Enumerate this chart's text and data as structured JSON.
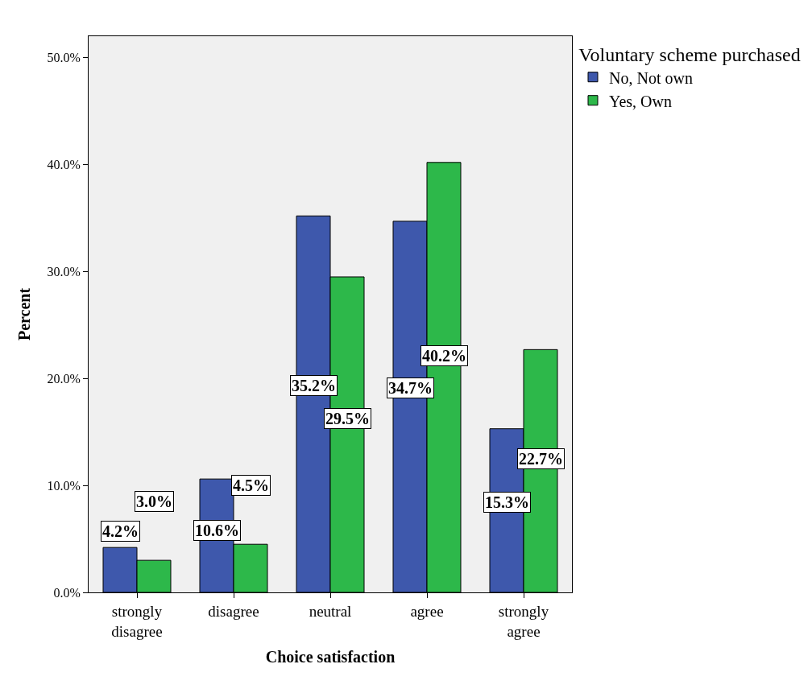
{
  "chart_data": {
    "type": "bar",
    "xlabel": "Choice satisfaction",
    "ylabel": "Percent",
    "legend_title": "Voluntary scheme purchased",
    "categories": [
      "strongly disagree",
      "disagree",
      "neutral",
      "agree",
      "strongly agree"
    ],
    "series": [
      {
        "name": "No, Not own",
        "color": "#3e58ac",
        "values": [
          4.2,
          10.6,
          35.2,
          34.7,
          15.3
        ],
        "value_labels": [
          "4.2%",
          "10.6%",
          "35.2%",
          "34.7%",
          "15.3%"
        ]
      },
      {
        "name": "Yes, Own",
        "color": "#2db84a",
        "values": [
          3.0,
          4.5,
          29.5,
          40.2,
          22.7
        ],
        "value_labels": [
          "3.0%",
          "4.5%",
          "29.5%",
          "40.2%",
          "22.7%"
        ]
      }
    ],
    "ylim": [
      0,
      52
    ],
    "yticks": [
      {
        "value": 0,
        "label": "0.0%"
      },
      {
        "value": 10,
        "label": "10.0%"
      },
      {
        "value": 20,
        "label": "20.0%"
      },
      {
        "value": 30,
        "label": "30.0%"
      },
      {
        "value": 40,
        "label": "40.0%"
      },
      {
        "value": 50,
        "label": "50.0%"
      }
    ],
    "grid": false,
    "legend": "top right"
  }
}
